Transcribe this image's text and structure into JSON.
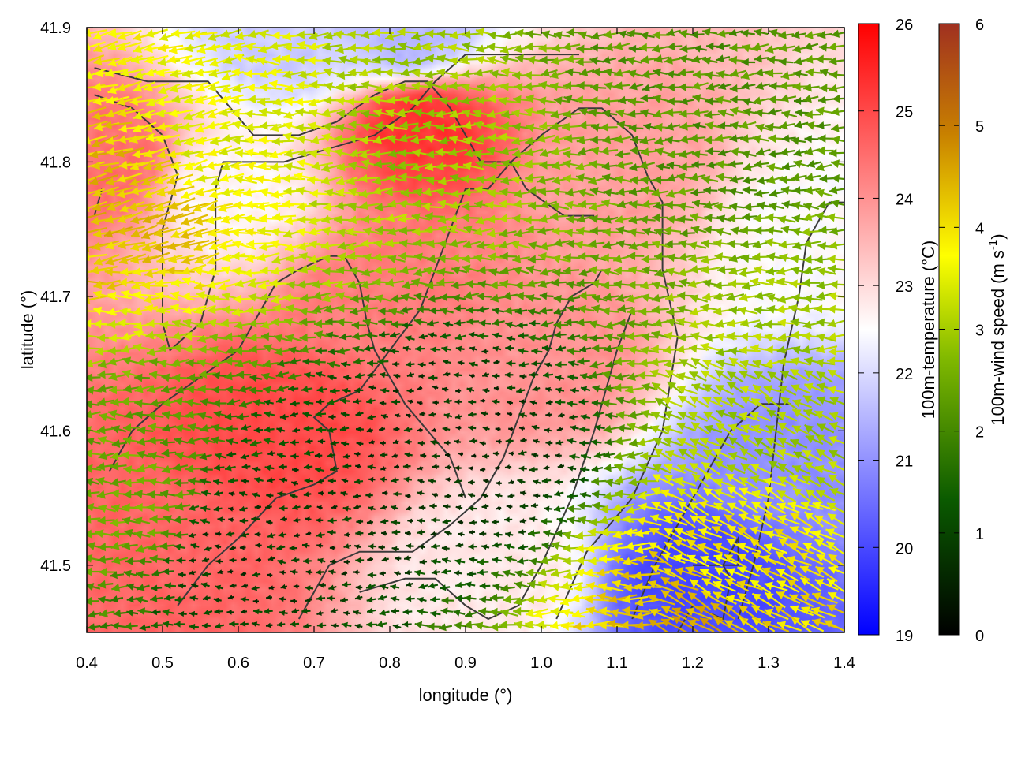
{
  "chart_data": {
    "type": "heatmap",
    "xlabel": "longitude (°)",
    "ylabel": "latitude (°)",
    "xlim": [
      0.4,
      1.4
    ],
    "ylim": [
      41.45,
      41.9
    ],
    "x_ticks": [
      "0.4",
      "0.5",
      "0.6",
      "0.7",
      "0.8",
      "0.9",
      "1.0",
      "1.1",
      "1.2",
      "1.3",
      "1.4"
    ],
    "y_ticks": [
      "41.5",
      "41.6",
      "41.7",
      "41.8",
      "41.9"
    ],
    "temperature_colorbar": {
      "label": "100m-temperature (°C)",
      "range": [
        19,
        26
      ],
      "ticks": [
        "19",
        "20",
        "21",
        "22",
        "23",
        "24",
        "25",
        "26"
      ],
      "colors": [
        "#0000ff",
        "#ffffff",
        "#ff0000"
      ]
    },
    "wind_colorbar": {
      "label_main": "100m-wind speed (m s",
      "label_sup": "-1",
      "label_end": ")",
      "range": [
        0,
        6
      ],
      "ticks": [
        "0",
        "1",
        "2",
        "3",
        "4",
        "5",
        "6"
      ],
      "colors": [
        "#000000",
        "#0a5a00",
        "#7fb800",
        "#ffff00",
        "#c88000",
        "#a03020"
      ]
    },
    "temperature_regions": [
      {
        "lon": 0.84,
        "lat": 41.83,
        "value": 25.3
      },
      {
        "lon": 0.43,
        "lat": 41.8,
        "value": 24.5
      },
      {
        "lon": 0.66,
        "lat": 41.6,
        "value": 25.0
      },
      {
        "lon": 0.5,
        "lat": 41.5,
        "value": 24.6
      },
      {
        "lon": 0.8,
        "lat": 41.7,
        "value": 24.3
      },
      {
        "lon": 1.0,
        "lat": 41.65,
        "value": 24.0
      },
      {
        "lon": 1.1,
        "lat": 41.8,
        "value": 23.8
      },
      {
        "lon": 0.58,
        "lat": 41.78,
        "value": 22.6
      },
      {
        "lon": 1.2,
        "lat": 41.49,
        "value": 20.0
      },
      {
        "lon": 1.33,
        "lat": 41.58,
        "value": 21.0
      },
      {
        "lon": 1.37,
        "lat": 41.75,
        "value": 22.5
      },
      {
        "lon": 0.67,
        "lat": 41.89,
        "value": 21.8
      },
      {
        "lon": 0.82,
        "lat": 41.89,
        "value": 21.5
      },
      {
        "lon": 0.95,
        "lat": 41.5,
        "value": 22.8
      }
    ],
    "wind_regions": [
      {
        "lon": 0.45,
        "lat": 41.78,
        "speed": 5.2
      },
      {
        "lon": 0.58,
        "lat": 41.82,
        "speed": 4.2
      },
      {
        "lon": 1.25,
        "lat": 41.48,
        "speed": 4.6
      },
      {
        "lon": 1.22,
        "lat": 41.46,
        "speed": 5.5
      },
      {
        "lon": 1.33,
        "lat": 41.62,
        "speed": 3.5
      },
      {
        "lon": 1.2,
        "lat": 41.85,
        "speed": 2.4
      },
      {
        "lon": 0.9,
        "lat": 41.58,
        "speed": 0.4
      },
      {
        "lon": 0.62,
        "lat": 41.52,
        "speed": 0.5
      },
      {
        "lon": 0.85,
        "lat": 41.82,
        "speed": 3.4
      },
      {
        "lon": 0.45,
        "lat": 41.55,
        "speed": 2.8
      }
    ],
    "contours": [
      [
        [
          0.41,
          41.87
        ],
        [
          0.48,
          41.86
        ],
        [
          0.56,
          41.86
        ],
        [
          0.62,
          41.82
        ],
        [
          0.68,
          41.82
        ],
        [
          0.73,
          41.83
        ],
        [
          0.78,
          41.85
        ],
        [
          0.82,
          41.86
        ],
        [
          0.85,
          41.86
        ],
        [
          0.88,
          41.84
        ],
        [
          0.92,
          41.8
        ],
        [
          0.96,
          41.8
        ],
        [
          0.98,
          41.78
        ],
        [
          1.03,
          41.76
        ],
        [
          1.07,
          41.76
        ]
      ],
      [
        [
          0.41,
          41.85
        ],
        [
          0.46,
          41.84
        ],
        [
          0.5,
          41.82
        ],
        [
          0.52,
          41.79
        ],
        [
          0.5,
          41.75
        ],
        [
          0.5,
          41.68
        ],
        [
          0.51,
          41.66
        ],
        [
          0.55,
          41.68
        ],
        [
          0.56,
          41.7
        ],
        [
          0.57,
          41.72
        ],
        [
          0.57,
          41.78
        ],
        [
          0.58,
          41.8
        ],
        [
          0.62,
          41.8
        ],
        [
          0.66,
          41.8
        ],
        [
          0.72,
          41.81
        ],
        [
          0.78,
          41.82
        ],
        [
          0.83,
          41.84
        ],
        [
          0.86,
          41.86
        ],
        [
          0.9,
          41.88
        ],
        [
          0.96,
          41.88
        ],
        [
          1.0,
          41.88
        ],
        [
          1.05,
          41.88
        ]
      ],
      [
        [
          0.41,
          41.76
        ],
        [
          0.42,
          41.78
        ]
      ],
      [
        [
          0.43,
          41.57
        ],
        [
          0.46,
          41.6
        ],
        [
          0.5,
          41.62
        ],
        [
          0.55,
          41.64
        ],
        [
          0.6,
          41.66
        ],
        [
          0.65,
          41.71
        ],
        [
          0.68,
          41.72
        ],
        [
          0.72,
          41.73
        ],
        [
          0.74,
          41.73
        ],
        [
          0.76,
          41.71
        ],
        [
          0.77,
          41.68
        ],
        [
          0.78,
          41.66
        ],
        [
          0.8,
          41.64
        ],
        [
          0.82,
          41.62
        ],
        [
          0.85,
          41.6
        ],
        [
          0.88,
          41.58
        ],
        [
          0.9,
          41.55
        ]
      ],
      [
        [
          0.52,
          41.47
        ],
        [
          0.56,
          41.5
        ],
        [
          0.6,
          41.52
        ],
        [
          0.65,
          41.55
        ],
        [
          0.7,
          41.56
        ],
        [
          0.73,
          41.57
        ],
        [
          0.72,
          41.6
        ],
        [
          0.7,
          41.61
        ],
        [
          0.72,
          41.62
        ],
        [
          0.76,
          41.63
        ],
        [
          0.8,
          41.66
        ],
        [
          0.84,
          41.69
        ],
        [
          0.86,
          41.72
        ],
        [
          0.88,
          41.75
        ],
        [
          0.9,
          41.78
        ],
        [
          0.93,
          41.78
        ],
        [
          0.96,
          41.8
        ],
        [
          1.0,
          41.82
        ],
        [
          1.05,
          41.84
        ],
        [
          1.08,
          41.84
        ],
        [
          1.12,
          41.82
        ],
        [
          1.14,
          41.79
        ],
        [
          1.16,
          41.77
        ],
        [
          1.16,
          41.72
        ],
        [
          1.18,
          41.67
        ],
        [
          1.16,
          41.6
        ],
        [
          1.12,
          41.55
        ],
        [
          1.06,
          41.51
        ],
        [
          1.02,
          41.46
        ]
      ],
      [
        [
          0.68,
          41.46
        ],
        [
          0.72,
          41.5
        ],
        [
          0.76,
          41.51
        ],
        [
          0.83,
          41.51
        ],
        [
          0.88,
          41.53
        ],
        [
          0.92,
          41.55
        ],
        [
          0.95,
          41.58
        ],
        [
          0.97,
          41.61
        ],
        [
          0.99,
          41.64
        ],
        [
          1.01,
          41.66
        ],
        [
          1.02,
          41.68
        ],
        [
          1.04,
          41.7
        ],
        [
          1.07,
          41.71
        ],
        [
          1.08,
          41.72
        ]
      ],
      [
        [
          0.76,
          41.48
        ],
        [
          0.82,
          41.49
        ],
        [
          0.86,
          41.49
        ],
        [
          0.9,
          41.47
        ],
        [
          0.93,
          41.46
        ],
        [
          0.97,
          41.47
        ],
        [
          1.0,
          41.5
        ],
        [
          1.04,
          41.55
        ],
        [
          1.07,
          41.6
        ],
        [
          1.1,
          41.66
        ],
        [
          1.12,
          41.69
        ]
      ],
      [
        [
          1.18,
          41.45
        ],
        [
          1.2,
          41.47
        ],
        [
          1.24,
          41.46
        ],
        [
          1.25,
          41.49
        ],
        [
          1.24,
          41.5
        ],
        [
          1.26,
          41.5
        ],
        [
          1.26,
          41.52
        ],
        [
          1.24,
          41.5
        ],
        [
          1.2,
          41.5
        ]
      ],
      [
        [
          1.26,
          41.46
        ],
        [
          1.28,
          41.5
        ],
        [
          1.3,
          41.55
        ],
        [
          1.31,
          41.6
        ],
        [
          1.32,
          41.65
        ],
        [
          1.34,
          41.7
        ],
        [
          1.35,
          41.74
        ],
        [
          1.38,
          41.77
        ],
        [
          1.4,
          41.77
        ]
      ],
      [
        [
          1.12,
          41.46
        ],
        [
          1.15,
          41.5
        ],
        [
          1.2,
          41.55
        ],
        [
          1.25,
          41.6
        ],
        [
          1.29,
          41.62
        ],
        [
          1.33,
          41.62
        ]
      ]
    ]
  }
}
